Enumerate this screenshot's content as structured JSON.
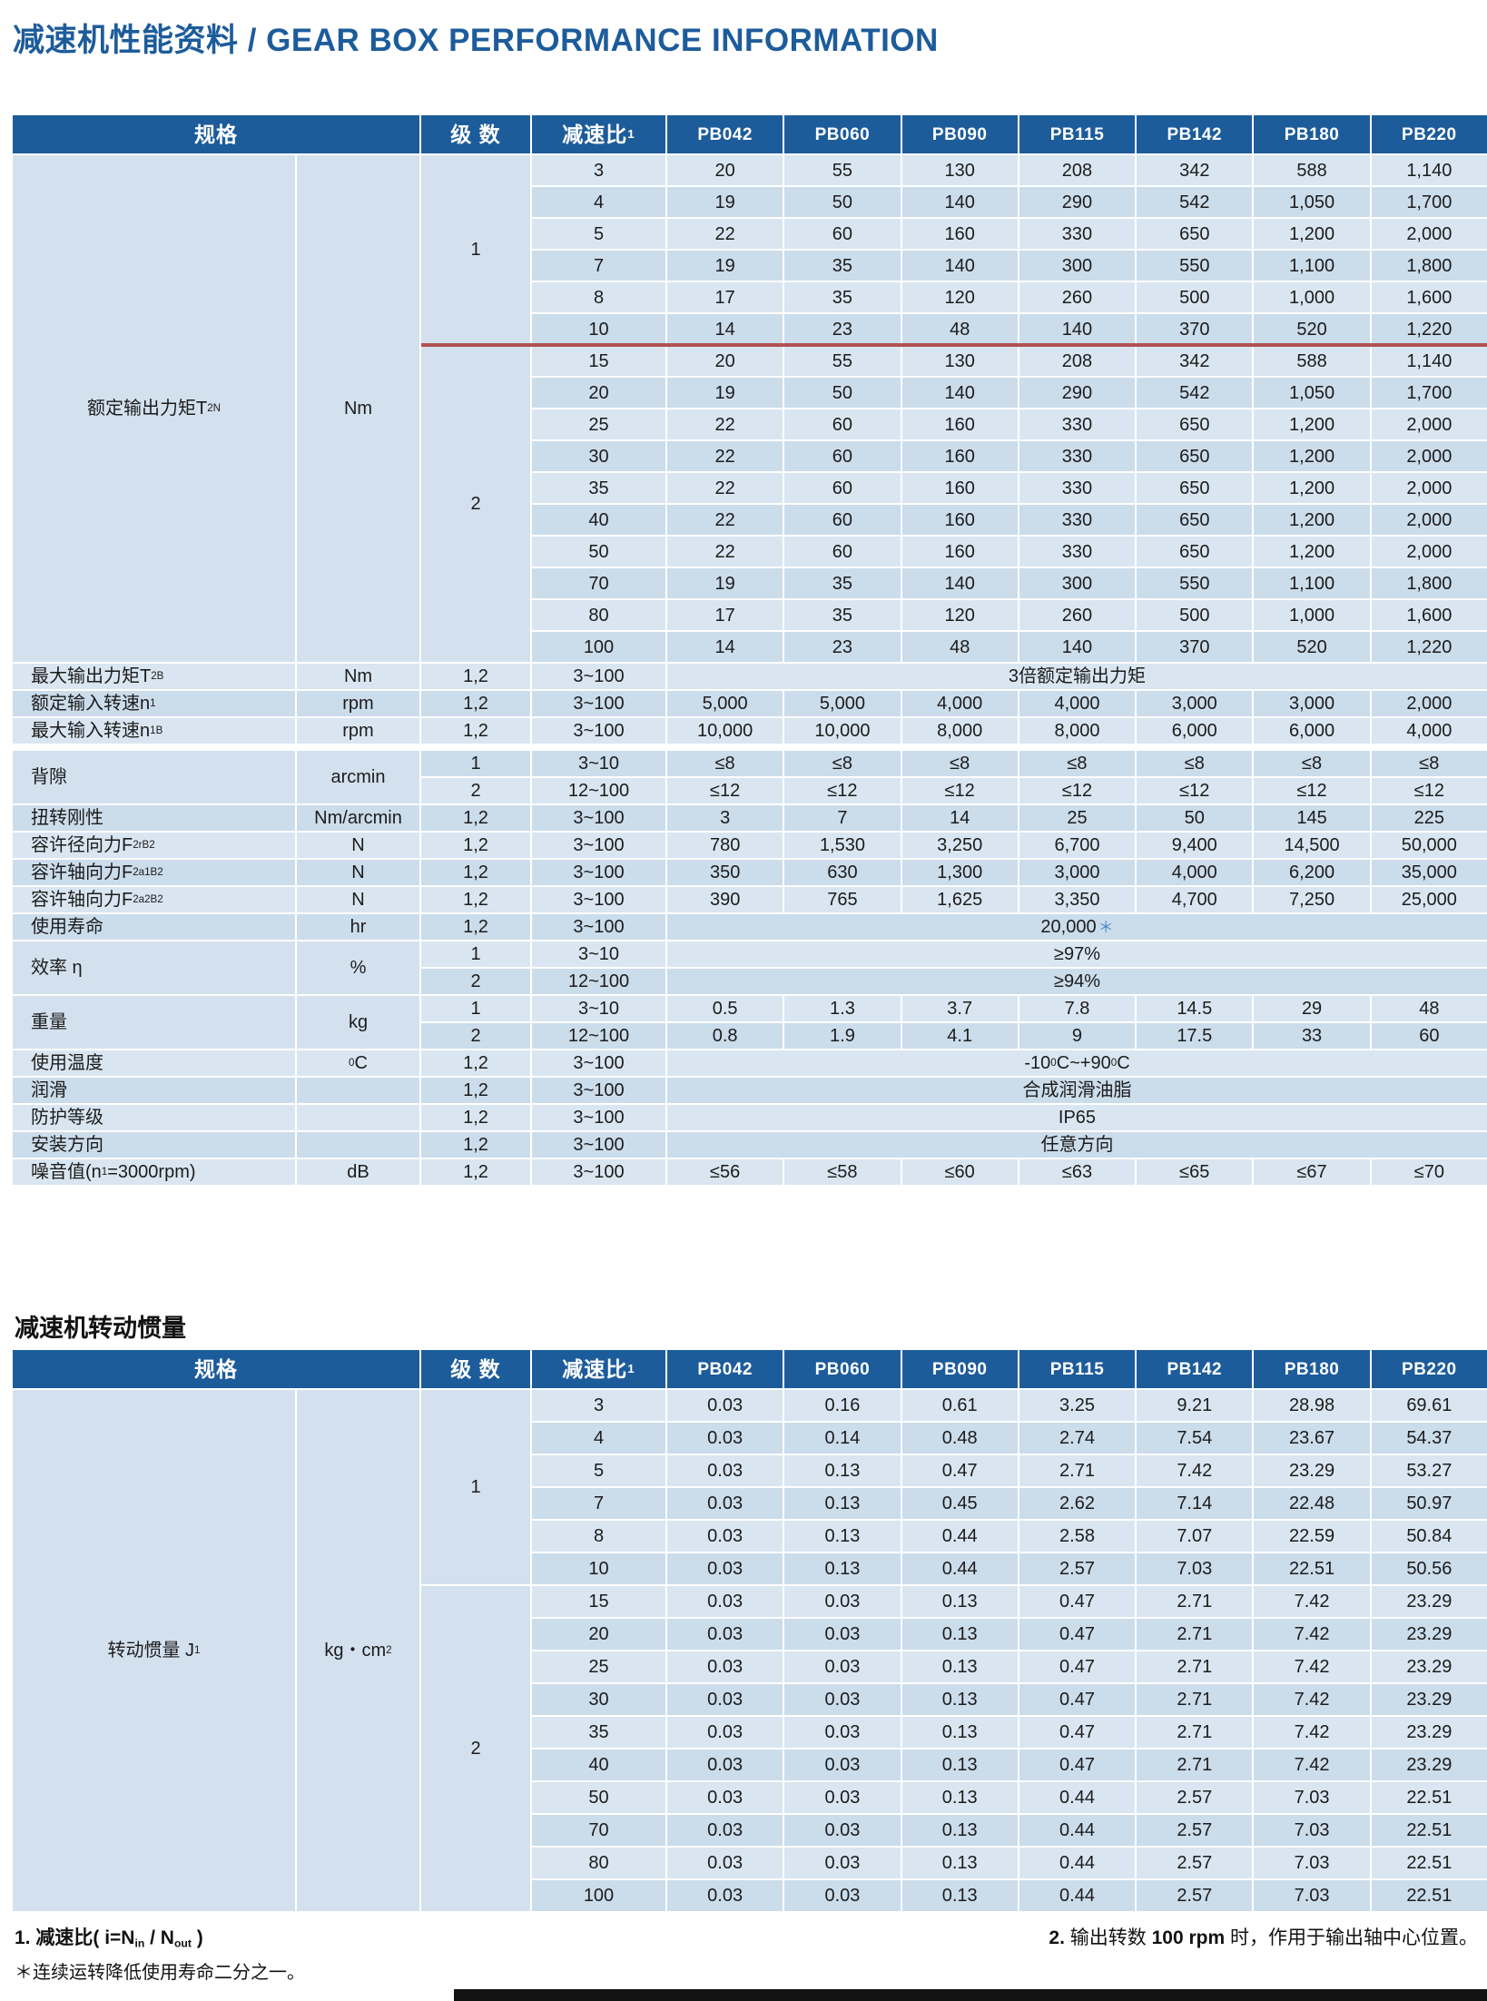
{
  "page": {
    "title": "减速机性能资料 / GEAR BOX PERFORMANCE INFORMATION"
  },
  "colors": {
    "header_blue": "#1d5c9b",
    "row_light": "#d9e6f1",
    "row_dark": "#cbdceb",
    "merged_cell": "#d3e1ee",
    "red_divider_line": "#b05252",
    "asterisk_blue": "#4a85c0",
    "footer_bar": "#121212"
  },
  "perf_table": {
    "header": {
      "spec": "规格",
      "stages": "级 数",
      "ratio_html": "减速比<sup>1</sup>",
      "models": [
        "PB042",
        "PB060",
        "PB090",
        "PB115",
        "PB142",
        "PB180",
        "PB220"
      ]
    },
    "groups": [
      {
        "type": "stage-group",
        "label_html": "额定输出力矩T<sub>2N</sub>",
        "unit_html": "Nm",
        "red_line_after_rows": 6,
        "blocks": [
          {
            "stage": "1",
            "rows": [
              {
                "ratio": "3",
                "values": [
                  "20",
                  "55",
                  "130",
                  "208",
                  "342",
                  "588",
                  "1,140"
                ]
              },
              {
                "ratio": "4",
                "values": [
                  "19",
                  "50",
                  "140",
                  "290",
                  "542",
                  "1,050",
                  "1,700"
                ]
              },
              {
                "ratio": "5",
                "values": [
                  "22",
                  "60",
                  "160",
                  "330",
                  "650",
                  "1,200",
                  "2,000"
                ]
              },
              {
                "ratio": "7",
                "values": [
                  "19",
                  "35",
                  "140",
                  "300",
                  "550",
                  "1,100",
                  "1,800"
                ]
              },
              {
                "ratio": "8",
                "values": [
                  "17",
                  "35",
                  "120",
                  "260",
                  "500",
                  "1,000",
                  "1,600"
                ]
              },
              {
                "ratio": "10",
                "values": [
                  "14",
                  "23",
                  "48",
                  "140",
                  "370",
                  "520",
                  "1,220"
                ]
              }
            ]
          },
          {
            "stage": "2",
            "rows": [
              {
                "ratio": "15",
                "values": [
                  "20",
                  "55",
                  "130",
                  "208",
                  "342",
                  "588",
                  "1,140"
                ]
              },
              {
                "ratio": "20",
                "values": [
                  "19",
                  "50",
                  "140",
                  "290",
                  "542",
                  "1,050",
                  "1,700"
                ]
              },
              {
                "ratio": "25",
                "values": [
                  "22",
                  "60",
                  "160",
                  "330",
                  "650",
                  "1,200",
                  "2,000"
                ]
              },
              {
                "ratio": "30",
                "values": [
                  "22",
                  "60",
                  "160",
                  "330",
                  "650",
                  "1,200",
                  "2,000"
                ]
              },
              {
                "ratio": "35",
                "values": [
                  "22",
                  "60",
                  "160",
                  "330",
                  "650",
                  "1,200",
                  "2,000"
                ]
              },
              {
                "ratio": "40",
                "values": [
                  "22",
                  "60",
                  "160",
                  "330",
                  "650",
                  "1,200",
                  "2,000"
                ]
              },
              {
                "ratio": "50",
                "values": [
                  "22",
                  "60",
                  "160",
                  "330",
                  "650",
                  "1,200",
                  "2,000"
                ]
              },
              {
                "ratio": "70",
                "values": [
                  "19",
                  "35",
                  "140",
                  "300",
                  "550",
                  "1,100",
                  "1,800"
                ]
              },
              {
                "ratio": "80",
                "values": [
                  "17",
                  "35",
                  "120",
                  "260",
                  "500",
                  "1,000",
                  "1,600"
                ]
              },
              {
                "ratio": "100",
                "values": [
                  "14",
                  "23",
                  "48",
                  "140",
                  "370",
                  "520",
                  "1,220"
                ]
              }
            ]
          }
        ]
      },
      {
        "type": "simple",
        "label_html": "最大输出力矩T<sub>2B</sub>",
        "unit_html": "Nm",
        "stages": "1,2",
        "ratio": "3~100",
        "span_html": "3倍额定输出力矩"
      },
      {
        "type": "simple",
        "label_html": "额定输入转速n<sub>1</sub>",
        "unit_html": "rpm",
        "stages": "1,2",
        "ratio": "3~100",
        "values": [
          "5,000",
          "5,000",
          "4,000",
          "4,000",
          "3,000",
          "3,000",
          "2,000"
        ]
      },
      {
        "type": "simple",
        "label_html": "最大输入转速n<sub>1B</sub>",
        "unit_html": "rpm",
        "stages": "1,2",
        "ratio": "3~100",
        "values": [
          "10,000",
          "10,000",
          "8,000",
          "8,000",
          "6,000",
          "6,000",
          "4,000"
        ]
      },
      {
        "type": "gap"
      },
      {
        "type": "dual",
        "label_html": "背隙",
        "unit_html": "arcmin",
        "rows": [
          {
            "stages": "1",
            "ratio": "3~10",
            "values": [
              "≤8",
              "≤8",
              "≤8",
              "≤8",
              "≤8",
              "≤8",
              "≤8"
            ]
          },
          {
            "stages": "2",
            "ratio": "12~100",
            "values": [
              "≤12",
              "≤12",
              "≤12",
              "≤12",
              "≤12",
              "≤12",
              "≤12"
            ]
          }
        ]
      },
      {
        "type": "simple",
        "label_html": "扭转刚性",
        "unit_html": "Nm/arcmin",
        "stages": "1,2",
        "ratio": "3~100",
        "values": [
          "3",
          "7",
          "14",
          "25",
          "50",
          "145",
          "225"
        ]
      },
      {
        "type": "simple",
        "label_html": "容许径向力F<sub>2rB</sub><sup>2</sup>",
        "unit_html": "N",
        "stages": "1,2",
        "ratio": "3~100",
        "values": [
          "780",
          "1,530",
          "3,250",
          "6,700",
          "9,400",
          "14,500",
          "50,000"
        ]
      },
      {
        "type": "simple",
        "label_html": "容许轴向力F<sub>2a1B</sub><sup>2</sup>",
        "unit_html": "N",
        "stages": "1,2",
        "ratio": "3~100",
        "values": [
          "350",
          "630",
          "1,300",
          "3,000",
          "4,000",
          "6,200",
          "35,000"
        ]
      },
      {
        "type": "simple",
        "label_html": "容许轴向力F<sub>2a2B</sub><sup>2</sup>",
        "unit_html": "N",
        "stages": "1,2",
        "ratio": "3~100",
        "values": [
          "390",
          "765",
          "1,625",
          "3,350",
          "4,700",
          "7,250",
          "25,000"
        ]
      },
      {
        "type": "simple",
        "label_html": "使用寿命",
        "unit_html": "hr",
        "stages": "1,2",
        "ratio": "3~100",
        "span_html": "20,000<span class='ast'>＊</span>"
      },
      {
        "type": "dual",
        "label_html": "效率 η",
        "unit_html": "%",
        "rows": [
          {
            "stages": "1",
            "ratio": "3~10",
            "span_html": "≥97%"
          },
          {
            "stages": "2",
            "ratio": "12~100",
            "span_html": "≥94%"
          }
        ]
      },
      {
        "type": "dual",
        "label_html": "重量",
        "unit_html": "kg",
        "rows": [
          {
            "stages": "1",
            "ratio": "3~10",
            "values": [
              "0.5",
              "1.3",
              "3.7",
              "7.8",
              "14.5",
              "29",
              "48"
            ]
          },
          {
            "stages": "2",
            "ratio": "12~100",
            "values": [
              "0.8",
              "1.9",
              "4.1",
              "9",
              "17.5",
              "33",
              "60"
            ]
          }
        ]
      },
      {
        "type": "simple",
        "label_html": "使用温度",
        "unit_html": "<sup>0</sup>C",
        "stages": "1,2",
        "ratio": "3~100",
        "span_html": "-10<sup>0</sup>C~+90<sup>0</sup>C"
      },
      {
        "type": "simple",
        "label_html": "润滑",
        "unit_html": "",
        "stages": "1,2",
        "ratio": "3~100",
        "span_html": "合成润滑油脂"
      },
      {
        "type": "simple",
        "label_html": "防护等级",
        "unit_html": "",
        "stages": "1,2",
        "ratio": "3~100",
        "span_html": "IP65"
      },
      {
        "type": "simple",
        "label_html": "安装方向",
        "unit_html": "",
        "stages": "1,2",
        "ratio": "3~100",
        "span_html": "任意方向"
      },
      {
        "type": "simple",
        "label_html": "噪音值(n<sub>1</sub>=3000rpm)",
        "unit_html": "dB",
        "stages": "1,2",
        "ratio": "3~100",
        "values": [
          "≤56",
          "≤58",
          "≤60",
          "≤63",
          "≤65",
          "≤67",
          "≤70"
        ]
      }
    ]
  },
  "inertia_table": {
    "title": "减速机转动惯量",
    "header": {
      "spec": "规格",
      "stages": "级 数",
      "ratio_html": "减速比<sup>1</sup>",
      "models": [
        "PB042",
        "PB060",
        "PB090",
        "PB115",
        "PB142",
        "PB180",
        "PB220"
      ]
    },
    "groups": [
      {
        "type": "stage-group",
        "label_html": "转动惯量 J<sub>1</sub>",
        "unit_html": "kg・cm<sup>2</sup>",
        "blocks": [
          {
            "stage": "1",
            "rows": [
              {
                "ratio": "3",
                "values": [
                  "0.03",
                  "0.16",
                  "0.61",
                  "3.25",
                  "9.21",
                  "28.98",
                  "69.61"
                ]
              },
              {
                "ratio": "4",
                "values": [
                  "0.03",
                  "0.14",
                  "0.48",
                  "2.74",
                  "7.54",
                  "23.67",
                  "54.37"
                ]
              },
              {
                "ratio": "5",
                "values": [
                  "0.03",
                  "0.13",
                  "0.47",
                  "2.71",
                  "7.42",
                  "23.29",
                  "53.27"
                ]
              },
              {
                "ratio": "7",
                "values": [
                  "0.03",
                  "0.13",
                  "0.45",
                  "2.62",
                  "7.14",
                  "22.48",
                  "50.97"
                ]
              },
              {
                "ratio": "8",
                "values": [
                  "0.03",
                  "0.13",
                  "0.44",
                  "2.58",
                  "7.07",
                  "22.59",
                  "50.84"
                ]
              },
              {
                "ratio": "10",
                "values": [
                  "0.03",
                  "0.13",
                  "0.44",
                  "2.57",
                  "7.03",
                  "22.51",
                  "50.56"
                ]
              }
            ]
          },
          {
            "stage": "2",
            "rows": [
              {
                "ratio": "15",
                "values": [
                  "0.03",
                  "0.03",
                  "0.13",
                  "0.47",
                  "2.71",
                  "7.42",
                  "23.29"
                ]
              },
              {
                "ratio": "20",
                "values": [
                  "0.03",
                  "0.03",
                  "0.13",
                  "0.47",
                  "2.71",
                  "7.42",
                  "23.29"
                ]
              },
              {
                "ratio": "25",
                "values": [
                  "0.03",
                  "0.03",
                  "0.13",
                  "0.47",
                  "2.71",
                  "7.42",
                  "23.29"
                ]
              },
              {
                "ratio": "30",
                "values": [
                  "0.03",
                  "0.03",
                  "0.13",
                  "0.47",
                  "2.71",
                  "7.42",
                  "23.29"
                ]
              },
              {
                "ratio": "35",
                "values": [
                  "0.03",
                  "0.03",
                  "0.13",
                  "0.47",
                  "2.71",
                  "7.42",
                  "23.29"
                ]
              },
              {
                "ratio": "40",
                "values": [
                  "0.03",
                  "0.03",
                  "0.13",
                  "0.47",
                  "2.71",
                  "7.42",
                  "23.29"
                ]
              },
              {
                "ratio": "50",
                "values": [
                  "0.03",
                  "0.03",
                  "0.13",
                  "0.44",
                  "2.57",
                  "7.03",
                  "22.51"
                ]
              },
              {
                "ratio": "70",
                "values": [
                  "0.03",
                  "0.03",
                  "0.13",
                  "0.44",
                  "2.57",
                  "7.03",
                  "22.51"
                ]
              },
              {
                "ratio": "80",
                "values": [
                  "0.03",
                  "0.03",
                  "0.13",
                  "0.44",
                  "2.57",
                  "7.03",
                  "22.51"
                ]
              },
              {
                "ratio": "100",
                "values": [
                  "0.03",
                  "0.03",
                  "0.13",
                  "0.44",
                  "2.57",
                  "7.03",
                  "22.51"
                ]
              }
            ]
          }
        ]
      }
    ]
  },
  "footnotes": {
    "note1_html": "<b>1.</b> 减速比( <b>i=N<sub>in</sub> / N<sub>out</sub></b> )",
    "note1b_html": "＊连续运转降低使用寿命二分之一。",
    "note2_html": "<b>2.</b> 输出转数 <b>100 rpm</b> 时，作用于输出轴中心位置。"
  }
}
